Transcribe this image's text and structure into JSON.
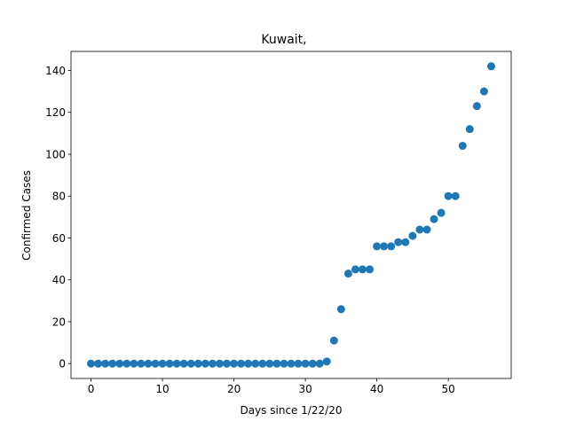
{
  "chart_data": {
    "type": "scatter",
    "title": "Kuwait,",
    "xlabel": "Days since 1/22/20",
    "ylabel": "Confirmed Cases",
    "xlim": [
      -2.8,
      58.8
    ],
    "ylim": [
      -7.1,
      149.1
    ],
    "xticks": [
      0,
      10,
      20,
      30,
      40,
      50
    ],
    "yticks": [
      0,
      20,
      40,
      60,
      80,
      100,
      120,
      140
    ],
    "grid": false,
    "legend": "none",
    "marker_color": "#1f77b4",
    "series": [
      {
        "x": [
          0,
          1,
          2,
          3,
          4,
          5,
          6,
          7,
          8,
          9,
          10,
          11,
          12,
          13,
          14,
          15,
          16,
          17,
          18,
          19,
          20,
          21,
          22,
          23,
          24,
          25,
          26,
          27,
          28,
          29,
          30,
          31,
          32,
          33,
          34,
          35,
          36,
          37,
          38,
          39,
          40,
          41,
          42,
          43,
          44,
          45,
          46,
          47,
          48,
          49,
          50,
          51,
          52,
          53,
          54,
          55,
          56
        ],
        "y": [
          0,
          0,
          0,
          0,
          0,
          0,
          0,
          0,
          0,
          0,
          0,
          0,
          0,
          0,
          0,
          0,
          0,
          0,
          0,
          0,
          0,
          0,
          0,
          0,
          0,
          0,
          0,
          0,
          0,
          0,
          0,
          0,
          0,
          1,
          11,
          26,
          43,
          45,
          45,
          45,
          56,
          56,
          56,
          58,
          58,
          61,
          64,
          64,
          69,
          72,
          80,
          80,
          104,
          112,
          123,
          130,
          142
        ]
      }
    ]
  }
}
